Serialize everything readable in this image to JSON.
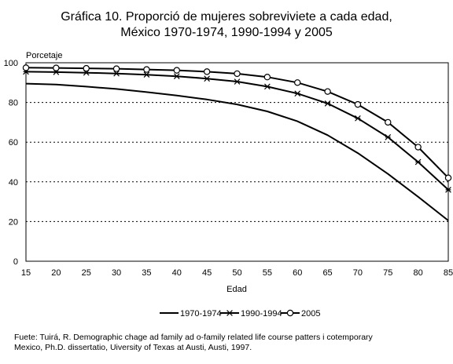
{
  "title_line1": "Gráfica 10. Proporció de mujeres sobreviviete a cada edad,",
  "title_line2": "México 1970-1974, 1990-1994 y 2005",
  "source_line1": "Fuete: Tuirá, R. Demographic chage ad family ad o-family related life course patters i cotemporary",
  "source_line2": "Mexico, Ph.D. dissertatio, Uiversity of Texas at Austi, Austi, 1997.",
  "chart_data": {
    "type": "line",
    "title": "Gráfica 10. Proporció de mujeres sobreviviete a cada edad, México 1970-1974, 1990-1994 y 2005",
    "xlabel": "Edad",
    "ylabel": "Porcetaje",
    "x": [
      15,
      20,
      25,
      30,
      35,
      40,
      45,
      50,
      55,
      60,
      65,
      70,
      75,
      80,
      85
    ],
    "xlim": [
      15,
      85
    ],
    "ylim": [
      0,
      100
    ],
    "yticks": [
      0,
      20,
      40,
      60,
      80,
      100
    ],
    "grid": "horizontal dotted",
    "legend_position": "bottom",
    "series": [
      {
        "name": "1970-1974",
        "marker": "none",
        "values": [
          89.5,
          89,
          88,
          86.8,
          85.2,
          83.5,
          81.5,
          79,
          75.5,
          70.5,
          63.5,
          54.5,
          44,
          32.5,
          20.5
        ]
      },
      {
        "name": "1990-1994",
        "marker": "star",
        "values": [
          95.5,
          95.3,
          95,
          94.6,
          94,
          93.2,
          92,
          90.5,
          88,
          84.5,
          79.5,
          72,
          62.5,
          50,
          36
        ]
      },
      {
        "name": "2005",
        "marker": "circle",
        "values": [
          97.5,
          97.4,
          97.2,
          97,
          96.6,
          96.2,
          95.5,
          94.5,
          92.8,
          90,
          85.5,
          79,
          70,
          57.5,
          42
        ]
      }
    ]
  }
}
